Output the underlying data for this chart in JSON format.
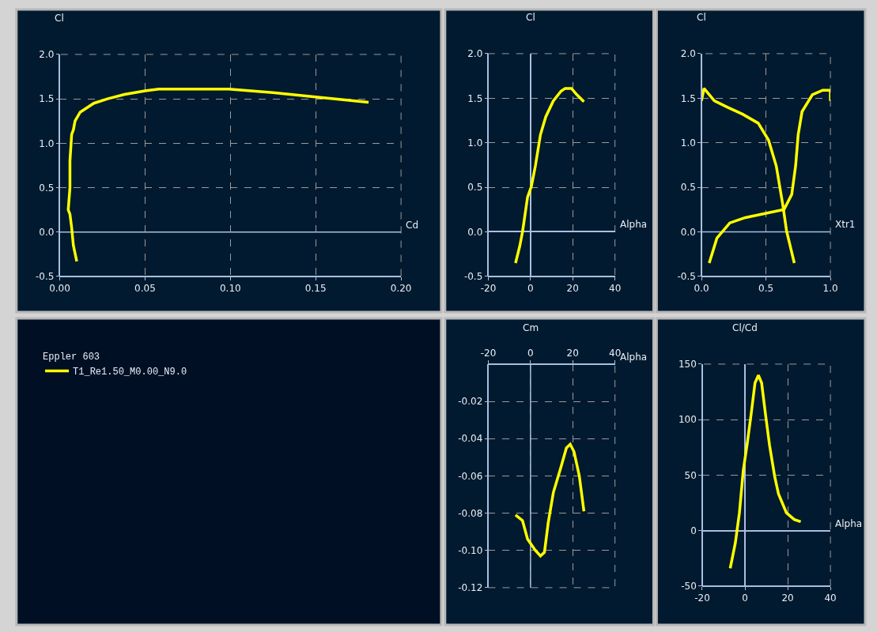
{
  "chart_data": [
    {
      "type": "line",
      "xlabel": "Cd",
      "ylabel": "Cl",
      "legend_title": "Eppler 603",
      "legend": "bottom left",
      "grid": true,
      "ref_lines": [
        {
          "axis": "y",
          "value": 0
        }
      ],
      "xlim": [
        0,
        0.2
      ],
      "xticks": [
        {
          "value": 0,
          "label": "0.00"
        },
        {
          "value": 0.05,
          "label": "0.05"
        },
        {
          "value": 0.1,
          "label": "0.10"
        },
        {
          "value": 0.15,
          "label": "0.15"
        },
        {
          "value": 0.2,
          "label": "0.20"
        }
      ],
      "ylim": [
        -0.5,
        2.0
      ],
      "yticks": [
        -0.5,
        {
          "value": 0,
          "label": "0.0"
        },
        0.5,
        {
          "value": 1,
          "label": "1.0"
        },
        1.5,
        {
          "value": 2,
          "label": "2.0"
        }
      ],
      "x": [
        0.01,
        0.008,
        0.007,
        0.006,
        0.005,
        0.006,
        0.006,
        0.007,
        0.008,
        0.009,
        0.012,
        0.02,
        0.028,
        0.038,
        0.05,
        0.058,
        0.099,
        0.125,
        0.15,
        0.181
      ],
      "series": [
        {
          "name": "T1_Re1.50_M0.00_N9.0",
          "color": "#ffff00",
          "values": [
            -0.33,
            -0.15,
            0.05,
            0.2,
            0.25,
            0.5,
            0.8,
            1.1,
            1.15,
            1.25,
            1.35,
            1.45,
            1.5,
            1.55,
            1.59,
            1.61,
            1.61,
            1.57,
            1.52,
            1.46
          ]
        }
      ]
    },
    {
      "type": "line",
      "xlabel": "Alpha",
      "ylabel": "Cl",
      "grid": true,
      "xlim": [
        -20,
        40
      ],
      "xticks": [
        -20,
        0,
        20,
        40
      ],
      "ylim": [
        -0.5,
        2.0
      ],
      "yticks": [
        -0.5,
        {
          "value": 0,
          "label": "0.0"
        },
        0.5,
        {
          "value": 1,
          "label": "1.0"
        },
        1.5,
        {
          "value": 2,
          "label": "2.0"
        }
      ],
      "x": [
        -7.1,
        -5.1,
        -3.8,
        -1.4,
        0.4,
        2.3,
        4.7,
        7.2,
        10.8,
        14.5,
        16.4,
        19.4,
        21.9,
        25.3
      ],
      "series": [
        {
          "color": "#ffff00",
          "values": [
            -0.35,
            -0.16,
            0.0,
            0.39,
            0.51,
            0.74,
            1.09,
            1.29,
            1.47,
            1.58,
            1.61,
            1.61,
            1.54,
            1.46
          ]
        }
      ]
    },
    {
      "type": "line",
      "xlabel": "Xtr1",
      "ylabel": "Cl",
      "grid": true,
      "ref_lines": [
        {
          "axis": "y",
          "value": 0
        }
      ],
      "xlim": [
        0,
        1
      ],
      "xticks": [
        {
          "value": 0,
          "label": "0.0"
        },
        0.5,
        {
          "value": 1,
          "label": "1.0"
        }
      ],
      "ylim": [
        -0.5,
        2.0
      ],
      "yticks": [
        -0.5,
        {
          "value": 0,
          "label": "0.0"
        },
        0.5,
        {
          "value": 1,
          "label": "1.0"
        },
        1.5,
        {
          "value": 2,
          "label": "2.0"
        }
      ],
      "series": [
        {
          "color": "#ffff00",
          "x": [
            0.72,
            0.66,
            0.63,
            0.58,
            0.52,
            0.44,
            0.32,
            0.2,
            0.1,
            0.02,
            0.0
          ],
          "values": [
            -0.35,
            0.01,
            0.31,
            0.74,
            1.03,
            1.22,
            1.32,
            1.4,
            1.47,
            1.61,
            1.47
          ]
        },
        {
          "color": "#ffff00",
          "x": [
            0.06,
            0.12,
            0.22,
            0.34,
            0.64,
            0.7,
            0.73,
            0.75,
            0.78,
            0.86,
            0.94,
            1.0,
            1.0
          ],
          "values": [
            -0.35,
            -0.07,
            0.1,
            0.16,
            0.25,
            0.42,
            0.74,
            1.09,
            1.35,
            1.54,
            1.59,
            1.59,
            1.47
          ]
        }
      ]
    },
    {
      "type": "line",
      "xlabel": "Alpha",
      "ylabel": "Cm",
      "grid": true,
      "ref_lines": [
        {
          "axis": "x",
          "value": 0
        }
      ],
      "xlim": [
        -20,
        40
      ],
      "xticks": [
        -20,
        0,
        20,
        40
      ],
      "ylim": [
        -0.12,
        0
      ],
      "yticks": [
        -0.12,
        {
          "value": -0.1,
          "label": "-0.10"
        },
        -0.08,
        -0.06,
        -0.04,
        -0.02
      ],
      "x": [
        -7.1,
        -3.8,
        -1.4,
        2.3,
        4.7,
        6.6,
        8.4,
        10.8,
        14.5,
        17.0,
        18.8,
        20.6,
        23.1,
        25.3
      ],
      "series": [
        {
          "color": "#ffff00",
          "values": [
            -0.081,
            -0.084,
            -0.094,
            -0.1,
            -0.103,
            -0.101,
            -0.085,
            -0.069,
            -0.055,
            -0.045,
            -0.043,
            -0.047,
            -0.06,
            -0.079
          ]
        }
      ]
    },
    {
      "type": "line",
      "xlabel": "Alpha",
      "ylabel": "Cl/Cd",
      "grid": true,
      "xlim": [
        -20,
        40
      ],
      "xticks": [
        -20,
        0,
        20,
        40
      ],
      "ylim": [
        -50,
        150
      ],
      "yticks": [
        -50,
        0,
        50,
        100,
        150
      ],
      "x": [
        -6.9,
        -4.5,
        -2.6,
        -0.8,
        1.1,
        2.9,
        4.7,
        6.3,
        7.8,
        9.6,
        11.5,
        13.9,
        15.7,
        19.4,
        23.1,
        26.1
      ],
      "series": [
        {
          "color": "#ffff00",
          "values": [
            -34,
            -11,
            16,
            54,
            79,
            105,
            133,
            140,
            133,
            105,
            77,
            49,
            33,
            16,
            10,
            8
          ]
        }
      ]
    }
  ]
}
